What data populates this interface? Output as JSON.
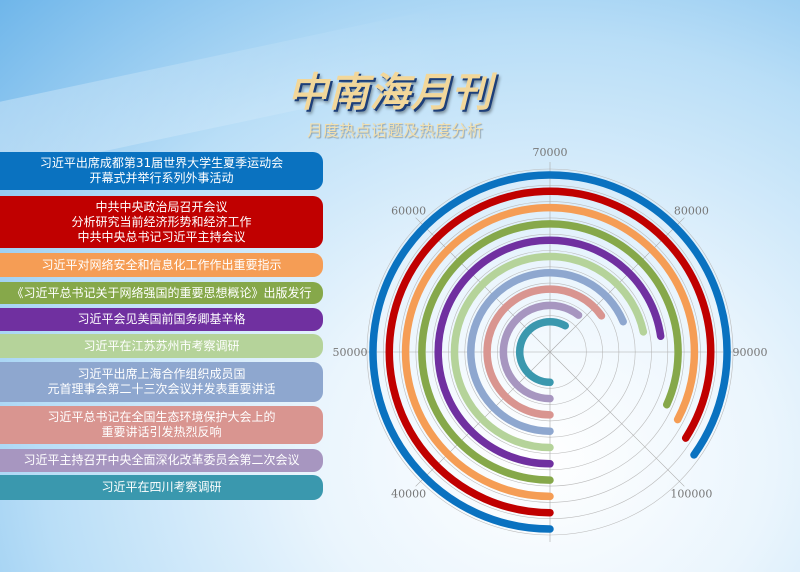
{
  "header": {
    "title": "中南海月刊",
    "subtitle": "月度热点话题及热度分析"
  },
  "chart_data": {
    "type": "radial-bar",
    "title": "",
    "axis_ticks": [
      "40000",
      "50000",
      "60000",
      "70000",
      "80000",
      "90000",
      "100000"
    ],
    "axis_range": [
      30000,
      110000
    ],
    "grid": true,
    "legend_placement": "left",
    "categories": [
      "习近平出席成都第31届世界大学生夏季运动会\n开幕式并举行系列外事活动",
      "中共中央政治局召开会议\n分析研究当前经济形势和经济工作\n中共中央总书记习近平主持会议",
      "习近平对网络安全和信息化工作作出重要指示",
      "《习近平总书记关于网络强国的重要思想概论》出版发行",
      "习近平会见美国前国务卿基辛格",
      "习近平在江苏苏州市考察调研",
      "习近平出席上海合作组织成员国\n元首理事会第二十三次会议并发表重要讲话",
      "习近平总书记在全国生态环境保护大会上的\n重要讲话引发热烈反响",
      "习近平主持召开中央全面深化改革委员会第二次会议",
      "习近平在四川考察调研"
    ],
    "values": [
      97900,
      97200,
      96200,
      95400,
      88200,
      87300,
      85000,
      82200,
      78400,
      76700
    ],
    "colors": [
      "#0a72c0",
      "#c00000",
      "#f59d55",
      "#86a84a",
      "#7030a0",
      "#b5d39a",
      "#8ea7cf",
      "#d99590",
      "#a796c0",
      "#3a98ae"
    ]
  }
}
